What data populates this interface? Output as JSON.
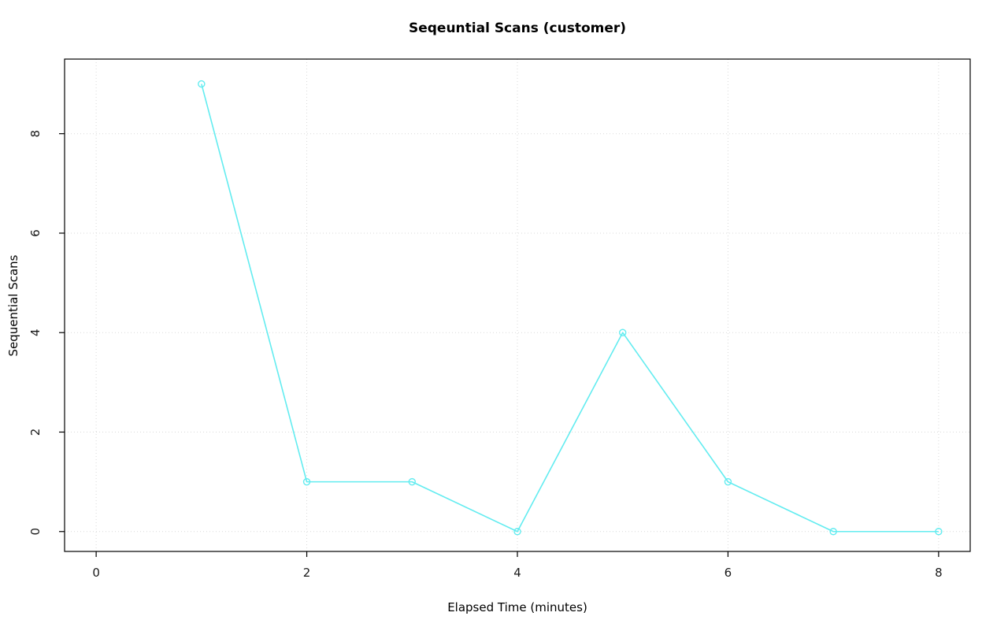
{
  "chart_data": {
    "type": "line",
    "title": "Seqeuntial Scans (customer)",
    "xlabel": "Elapsed Time (minutes)",
    "ylabel": "Sequential Scans",
    "x": [
      1,
      2,
      3,
      4,
      5,
      6,
      7,
      8
    ],
    "values": [
      9,
      1,
      1,
      0,
      4,
      1,
      0,
      0
    ],
    "x_ticks": [
      0,
      2,
      4,
      6,
      8
    ],
    "y_ticks": [
      0,
      2,
      4,
      6,
      8
    ],
    "xlim": [
      -0.3,
      8.3
    ],
    "ylim": [
      -0.4,
      9.5
    ],
    "line_color": "#63ecf0",
    "marker": "open-circle",
    "marker_radius": 4,
    "grid_color": "#d9d9d9",
    "grid_style": "dotted",
    "box_color": "#000000",
    "tick_label_color": "#1a1a1a",
    "legend_position": "none",
    "grid": "on"
  }
}
